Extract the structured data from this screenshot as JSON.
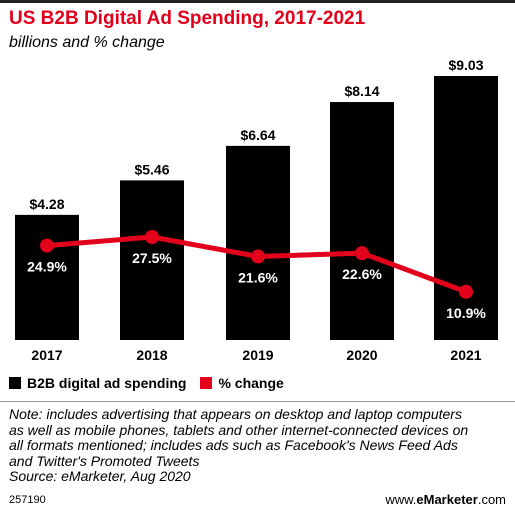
{
  "header": {
    "title": "US B2B Digital Ad Spending, 2017-2021",
    "subtitle": "billions and % change"
  },
  "chart_data": {
    "type": "bar",
    "categories": [
      "2017",
      "2018",
      "2019",
      "2020",
      "2021"
    ],
    "series": [
      {
        "name": "B2B digital ad spending",
        "type": "bar",
        "values": [
          4.28,
          5.46,
          6.64,
          8.14,
          9.03
        ],
        "labels": [
          "$4.28",
          "$5.46",
          "$6.64",
          "$8.14",
          "$9.03"
        ],
        "color": "#000000"
      },
      {
        "name": "% change",
        "type": "line",
        "values": [
          24.9,
          27.5,
          21.6,
          22.6,
          10.9
        ],
        "labels": [
          "24.9%",
          "27.5%",
          "21.6%",
          "22.6%",
          "10.9%"
        ],
        "color": "#e3001b"
      }
    ],
    "ylim": [
      0,
      9.03
    ],
    "grid": false,
    "legend": "bottom-left"
  },
  "legend": {
    "items": [
      {
        "label": "B2B digital ad spending",
        "color": "#000000"
      },
      {
        "label": "% change",
        "color": "#e3001b"
      }
    ]
  },
  "note": {
    "line1": "Note: includes advertising that appears on desktop and laptop computers",
    "line2": "as well as mobile phones, tablets and other internet-connected devices on",
    "line3": "all formats mentioned; includes ads such as Facebook's News Feed Ads",
    "line4": "and Twitter's Promoted Tweets",
    "source": "Source: eMarketer, Aug 2020"
  },
  "footer": {
    "id": "257190",
    "brand_prefix": "www.",
    "brand_name": "eMarketer",
    "brand_suffix": ".com"
  }
}
